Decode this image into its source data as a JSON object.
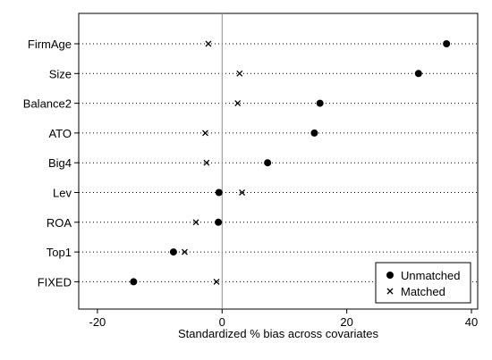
{
  "chart_data": {
    "type": "dot",
    "xlabel": "Standardized % bias across covariates",
    "xlim": [
      -23,
      41
    ],
    "xticks": [
      -20,
      0,
      20,
      40
    ],
    "xtick_labels": [
      "-20",
      "0",
      "20",
      "40"
    ],
    "categories": [
      "FirmAge",
      "Size",
      "Balance2",
      "ATO",
      "Big4",
      "Lev",
      "ROA",
      "Top1",
      "FIXED"
    ],
    "series": [
      {
        "name": "Unmatched",
        "marker": "filled-circle",
        "values": [
          36,
          31.5,
          15.7,
          14.8,
          7.3,
          -0.5,
          -0.6,
          -7.8,
          -14.2
        ]
      },
      {
        "name": "Matched",
        "marker": "cross",
        "values": [
          -2.2,
          2.8,
          2.5,
          -2.7,
          -2.5,
          3.2,
          -4.2,
          -6.0,
          -0.9
        ]
      }
    ],
    "grid": "dotted-horizontal",
    "zero_line": true,
    "legend_position": "bottom-right"
  }
}
